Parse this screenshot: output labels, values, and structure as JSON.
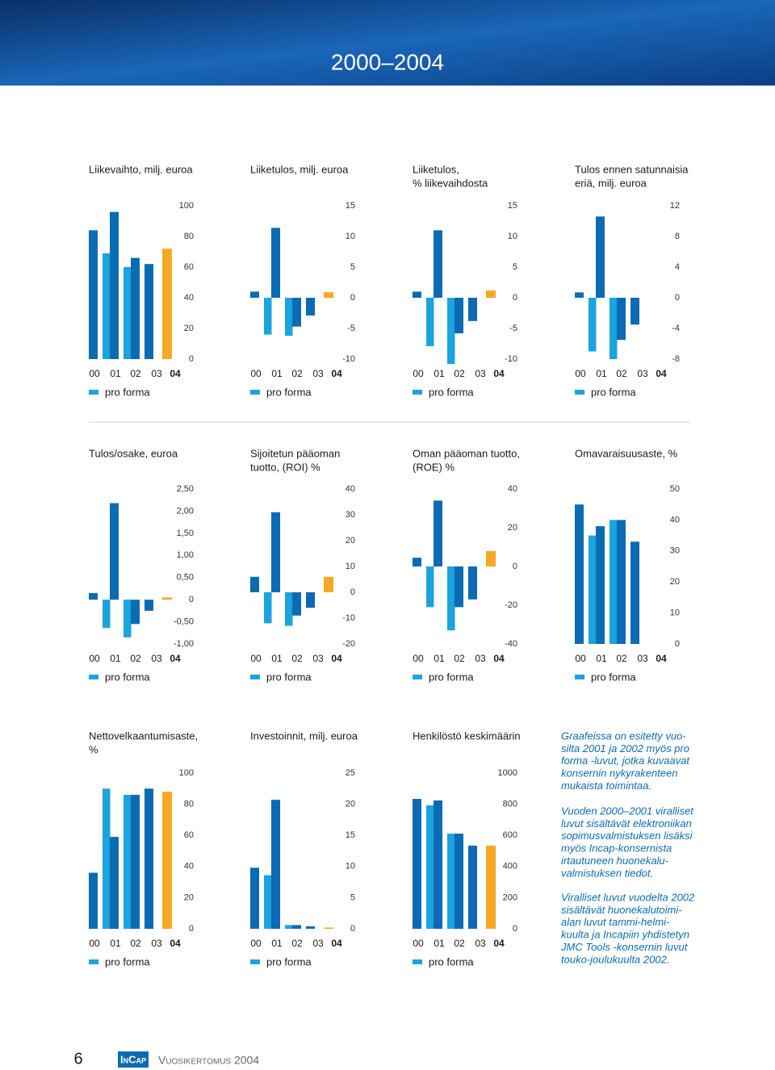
{
  "header": {
    "title": "2000–2004"
  },
  "chart_data": [
    {
      "type": "bar",
      "title": [
        "Liikevaihto, milj. euroa"
      ],
      "categories": [
        "00",
        "01",
        "02",
        "03",
        "04"
      ],
      "series": [
        {
          "color": "#0b6bb3",
          "values": [
            84,
            96,
            66,
            62,
            72
          ]
        },
        {
          "name": "pro forma",
          "color": "#1ba4de",
          "values": [
            null,
            69,
            60,
            null,
            null
          ]
        }
      ],
      "highlight_color": "#f7a823",
      "ylim": [
        0,
        100
      ],
      "yticks": [
        0,
        20,
        40,
        60,
        80,
        100
      ]
    },
    {
      "type": "bar",
      "title": [
        "Liiketulos, milj. euroa"
      ],
      "categories": [
        "00",
        "01",
        "02",
        "03",
        "04"
      ],
      "series": [
        {
          "color": "#0b6bb3",
          "values": [
            1.0,
            11.4,
            -4.7,
            -2.9,
            0.9
          ]
        },
        {
          "name": "pro forma",
          "color": "#1ba4de",
          "values": [
            null,
            -6.0,
            -6.2,
            null,
            null
          ]
        }
      ],
      "highlight_color": "#f7a823",
      "ylim": [
        -10,
        15
      ],
      "yticks": [
        -10,
        -5,
        0,
        5,
        10,
        15
      ]
    },
    {
      "type": "bar",
      "title": [
        "Liiketulos,",
        "% liikevaihdosta"
      ],
      "categories": [
        "00",
        "01",
        "02",
        "03",
        "04"
      ],
      "series": [
        {
          "color": "#0b6bb3",
          "values": [
            1.0,
            11.0,
            -5.8,
            -3.8,
            1.2
          ]
        },
        {
          "name": "pro forma",
          "color": "#1ba4de",
          "values": [
            null,
            -7.9,
            -10.8,
            null,
            null
          ]
        }
      ],
      "highlight_color": "#f7a823",
      "ylim": [
        -10,
        15
      ],
      "yticks": [
        -10,
        -5,
        0,
        5,
        10,
        15
      ]
    },
    {
      "type": "bar",
      "title": [
        "Tulos ennen satunnaisia",
        "eriä, milj. euroa"
      ],
      "categories": [
        "00",
        "01",
        "02",
        "03",
        "04"
      ],
      "series": [
        {
          "color": "#0b6bb3",
          "values": [
            0.7,
            10.6,
            -5.5,
            -3.5,
            null
          ]
        },
        {
          "name": "pro forma",
          "color": "#1ba4de",
          "values": [
            null,
            -7.0,
            -8.0,
            null,
            null
          ]
        }
      ],
      "highlight_color": "#f7a823",
      "ylim": [
        -8,
        12
      ],
      "yticks": [
        -8,
        -4,
        0,
        4,
        8,
        12
      ]
    },
    {
      "type": "bar",
      "title": [
        "Tulos/osake, euroa"
      ],
      "categories": [
        "00",
        "01",
        "02",
        "03",
        "04"
      ],
      "series": [
        {
          "color": "#0b6bb3",
          "values": [
            0.15,
            2.18,
            -0.55,
            -0.25,
            0.05
          ]
        },
        {
          "name": "pro forma",
          "color": "#1ba4de",
          "values": [
            null,
            -0.64,
            -0.85,
            null,
            null
          ]
        }
      ],
      "highlight_color": "#f7a823",
      "ylim": [
        -1,
        2.5
      ],
      "yticks": [
        {
          "value": -1,
          "label": "-1,00"
        },
        {
          "value": -0.5,
          "label": "-0,50"
        },
        0,
        {
          "value": 0.5,
          "label": "0,50"
        },
        {
          "value": 1,
          "label": "1,00"
        },
        {
          "value": 1.5,
          "label": "1,50"
        },
        {
          "value": 2,
          "label": "2,00"
        },
        {
          "value": 2.5,
          "label": "2,50"
        }
      ]
    },
    {
      "type": "bar",
      "title": [
        "Sijoitetun pääoman",
        "tuotto, (ROI) %"
      ],
      "categories": [
        "00",
        "01",
        "02",
        "03",
        "04"
      ],
      "series": [
        {
          "color": "#0b6bb3",
          "values": [
            6,
            31,
            -9,
            -6,
            6
          ]
        },
        {
          "name": "pro forma",
          "color": "#1ba4de",
          "values": [
            null,
            -12,
            -13,
            null,
            null
          ]
        }
      ],
      "highlight_color": "#f7a823",
      "ylim": [
        -20,
        40
      ],
      "yticks": [
        -20,
        -10,
        0,
        10,
        20,
        30,
        40
      ]
    },
    {
      "type": "bar",
      "title": [
        "Oman pääoman tuotto,",
        "(ROE) %"
      ],
      "categories": [
        "00",
        "01",
        "02",
        "03",
        "04"
      ],
      "series": [
        {
          "color": "#0b6bb3",
          "values": [
            4.5,
            34,
            -21,
            -17,
            8
          ]
        },
        {
          "name": "pro forma",
          "color": "#1ba4de",
          "values": [
            null,
            -21,
            -33,
            null,
            null
          ]
        }
      ],
      "highlight_color": "#f7a823",
      "ylim": [
        -40,
        40
      ],
      "yticks": [
        -40,
        -20,
        0,
        20,
        40
      ]
    },
    {
      "type": "bar",
      "title": [
        "Omavaraisuusaste, %"
      ],
      "categories": [
        "00",
        "01",
        "02",
        "03",
        "04"
      ],
      "series": [
        {
          "color": "#0b6bb3",
          "values": [
            45,
            38,
            40,
            33,
            null
          ]
        },
        {
          "name": "pro forma",
          "color": "#1ba4de",
          "values": [
            null,
            35,
            40,
            null,
            null
          ]
        }
      ],
      "highlight_color": "#f7a823",
      "ylim": [
        0,
        50
      ],
      "yticks": [
        0,
        10,
        20,
        30,
        40,
        50
      ]
    },
    {
      "type": "bar",
      "title": [
        "Nettovelkaantumisaste,",
        "%"
      ],
      "categories": [
        "00",
        "01",
        "02",
        "03",
        "04"
      ],
      "series": [
        {
          "color": "#0b6bb3",
          "values": [
            36,
            59,
            86,
            90,
            88
          ]
        },
        {
          "name": "pro forma",
          "color": "#1ba4de",
          "values": [
            null,
            90,
            86,
            null,
            null
          ]
        }
      ],
      "highlight_color": "#f7a823",
      "ylim": [
        0,
        100
      ],
      "yticks": [
        0,
        20,
        40,
        60,
        80,
        100
      ]
    },
    {
      "type": "bar",
      "title": [
        "Investoinnit, milj. euroa"
      ],
      "categories": [
        "00",
        "01",
        "02",
        "03",
        "04"
      ],
      "series": [
        {
          "color": "#0b6bb3",
          "values": [
            9.8,
            20.7,
            0.6,
            0.4,
            0.2
          ]
        },
        {
          "name": "pro forma",
          "color": "#1ba4de",
          "values": [
            null,
            8.6,
            0.6,
            null,
            null
          ]
        }
      ],
      "highlight_color": "#f7a823",
      "ylim": [
        0,
        25
      ],
      "yticks": [
        0,
        5,
        10,
        15,
        20,
        25
      ]
    },
    {
      "type": "bar",
      "title": [
        "Henkilöstö keskimäärin"
      ],
      "categories": [
        "00",
        "01",
        "02",
        "03",
        "04"
      ],
      "series": [
        {
          "color": "#0b6bb3",
          "values": [
            834,
            824,
            611,
            534,
            534
          ]
        },
        {
          "name": "pro forma",
          "color": "#1ba4de",
          "values": [
            null,
            793,
            611,
            null,
            null
          ]
        }
      ],
      "highlight_color": "#f7a823",
      "ylim": [
        0,
        1000
      ],
      "yticks": [
        0,
        200,
        400,
        600,
        800,
        1000
      ]
    }
  ],
  "notes": [
    [
      "Graafeissa on esitetty vuo-",
      "silta 2001 ja 2002 myös pro",
      "forma -luvut, jotka kuvaavat",
      "konsernin nykyrakenteen",
      "mukaista toimintaa."
    ],
    [
      "Vuoden 2000–2001 viralliset",
      "luvut sisältävät elektroniikan",
      "sopimusvalmistuksen lisäksi",
      "myös Incap-konsernista",
      "irtautuneen huonekalu-",
      "valmistuksen tiedot."
    ],
    [
      "Viralliset luvut vuodelta 2002",
      "sisältävät huonekalutoimi-",
      "alan luvut tammi-helmi-",
      "kuulta ja Incapiin yhdistetyn",
      "JMC Tools -konsernin luvut",
      "touko-joulukuulta 2002."
    ]
  ],
  "footer": {
    "page": "6",
    "logo": "InCap",
    "text": "Vuosikertomus 2004"
  }
}
